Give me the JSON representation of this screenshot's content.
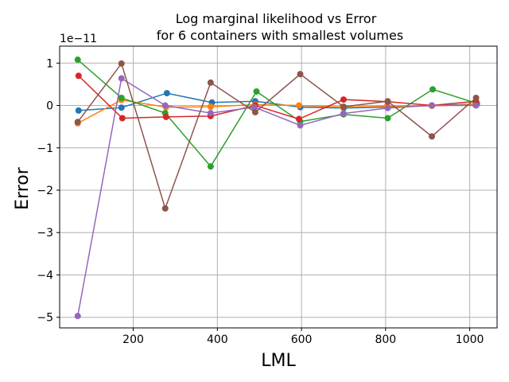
{
  "chart_data": {
    "type": "line",
    "title_line1": "Log marginal likelihood vs Error",
    "title_line2": "for 6 containers with smallest volumes",
    "xlabel": "LML",
    "ylabel": "Error",
    "y_offset_label": "1e−11",
    "xlim": [
      25,
      1065
    ],
    "ylim": [
      -5.25,
      1.4
    ],
    "y_scale_note": "values shown in units of 1e-11",
    "grid": true,
    "x_ticks": [
      200,
      400,
      600,
      800,
      1000
    ],
    "x_tick_labels": [
      "200",
      "400",
      "600",
      "800",
      "1000"
    ],
    "y_ticks": [
      1,
      0,
      -1,
      -2,
      -3,
      -4,
      -5
    ],
    "y_tick_labels": [
      "1",
      "0",
      "−1",
      "−2",
      "−3",
      "−4",
      "−5"
    ],
    "series": [
      {
        "color": "#1f77b4",
        "x": [
          70,
          172,
          280,
          387,
          490,
          597,
          700,
          805,
          910,
          1017
        ],
        "y": [
          -0.12,
          -0.05,
          0.29,
          0.07,
          0.1,
          -0.04,
          -0.06,
          -0.04,
          0.0,
          0.03
        ]
      },
      {
        "color": "#ff7f0e",
        "x": [
          68,
          172,
          278,
          384,
          490,
          594,
          698,
          803,
          910,
          1013
        ],
        "y": [
          -0.42,
          0.13,
          -0.04,
          -0.03,
          0.02,
          0.0,
          -0.04,
          -0.02,
          -0.01,
          0.02
        ]
      },
      {
        "color": "#2ca02c",
        "x": [
          68,
          172,
          276,
          384,
          493,
          597,
          700,
          805,
          912,
          1017
        ],
        "y": [
          1.08,
          0.18,
          -0.18,
          -1.44,
          0.33,
          -0.38,
          -0.21,
          -0.3,
          0.38,
          0.05
        ]
      },
      {
        "color": "#d62728",
        "x": [
          70,
          174,
          278,
          384,
          490,
          594,
          700,
          805,
          910,
          1015
        ],
        "y": [
          0.7,
          -0.3,
          -0.27,
          -0.25,
          0.0,
          -0.32,
          0.14,
          0.09,
          0.0,
          0.1
        ]
      },
      {
        "color": "#9467bd",
        "x": [
          68,
          172,
          276,
          384,
          488,
          597,
          700,
          805,
          910,
          1015
        ],
        "y": [
          -4.97,
          0.64,
          0.0,
          -0.18,
          -0.04,
          -0.47,
          -0.19,
          -0.06,
          0.0,
          0.0
        ]
      },
      {
        "color": "#8c564b",
        "x": [
          68,
          172,
          276,
          384,
          490,
          597,
          700,
          805,
          910,
          1015
        ],
        "y": [
          -0.39,
          0.99,
          -2.43,
          0.54,
          -0.16,
          0.74,
          -0.03,
          0.1,
          -0.73,
          0.18
        ]
      }
    ]
  }
}
